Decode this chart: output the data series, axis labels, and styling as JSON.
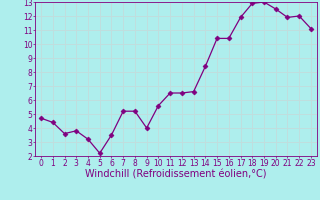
{
  "x": [
    0,
    1,
    2,
    3,
    4,
    5,
    6,
    7,
    8,
    9,
    10,
    11,
    12,
    13,
    14,
    15,
    16,
    17,
    18,
    19,
    20,
    21,
    22,
    23
  ],
  "y": [
    4.7,
    4.4,
    3.6,
    3.8,
    3.2,
    2.2,
    3.5,
    5.2,
    5.2,
    4.0,
    5.6,
    6.5,
    6.5,
    6.6,
    8.4,
    10.4,
    10.4,
    11.9,
    12.9,
    13.0,
    12.5,
    11.9,
    12.0,
    11.1
  ],
  "line_color": "#800080",
  "marker": "D",
  "bg_color": "#aeeeed",
  "grid_color": "#c0dede",
  "xlabel": "Windchill (Refroidissement éolien,°C)",
  "xlim": [
    -0.5,
    23.5
  ],
  "ylim": [
    2,
    13
  ],
  "yticks": [
    2,
    3,
    4,
    5,
    6,
    7,
    8,
    9,
    10,
    11,
    12,
    13
  ],
  "xtick_labels": [
    "0",
    "1",
    "2",
    "3",
    "4",
    "5",
    "6",
    "7",
    "8",
    "9",
    "10",
    "11",
    "12",
    "13",
    "14",
    "15",
    "16",
    "17",
    "18",
    "19",
    "20",
    "21",
    "22",
    "23"
  ],
  "spine_color": "#800080",
  "font_color": "#800080",
  "tick_fontsize": 5.5,
  "xlabel_fontsize": 7.0
}
